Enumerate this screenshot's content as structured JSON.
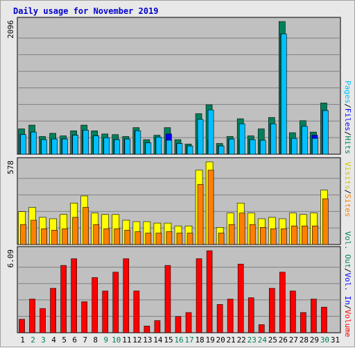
{
  "title": "Daily usage for November 2019",
  "colors": {
    "background": "#e8e8e8",
    "plot_bg": "#c0c0c0",
    "hits": "#00805c",
    "files": "#0000ff",
    "pages": "#00c0ff",
    "visits": "#ffff00",
    "sites": "#ff8000",
    "kbytes": "#ff0000",
    "weekday_label": "#000000",
    "weekend_label": "#00805c"
  },
  "chart_data": [
    {
      "type": "bar",
      "name": "hits-files-pages",
      "ymax_label": "2096",
      "ylim": [
        0,
        2096
      ],
      "legend": [
        "Hits",
        "Files",
        "Pages"
      ],
      "series": [
        {
          "name": "Hits",
          "values": [
            400,
            460,
            280,
            330,
            290,
            370,
            460,
            370,
            320,
            310,
            280,
            420,
            230,
            300,
            420,
            230,
            160,
            640,
            780,
            170,
            280,
            560,
            290,
            400,
            580,
            2096,
            340,
            530,
            350,
            810
          ]
        },
        {
          "name": "Files",
          "values": [
            310,
            350,
            230,
            240,
            240,
            300,
            380,
            290,
            260,
            230,
            240,
            370,
            180,
            270,
            320,
            170,
            130,
            230,
            230,
            130,
            240,
            230,
            230,
            220,
            480,
            1900,
            250,
            440,
            300,
            690
          ]
        },
        {
          "name": "Pages",
          "values": [
            310,
            350,
            230,
            240,
            240,
            300,
            380,
            290,
            260,
            230,
            240,
            370,
            180,
            270,
            220,
            170,
            130,
            550,
            700,
            130,
            240,
            480,
            230,
            220,
            480,
            1900,
            250,
            440,
            250,
            690
          ]
        }
      ]
    },
    {
      "type": "bar",
      "name": "visits-sites",
      "ymax_label": "578",
      "ylim": [
        0,
        578
      ],
      "legend": [
        "Visits",
        "Sites"
      ],
      "series": [
        {
          "name": "Visits",
          "values": [
            230,
            260,
            190,
            180,
            210,
            290,
            340,
            220,
            210,
            210,
            170,
            160,
            160,
            150,
            150,
            130,
            130,
            520,
            578,
            120,
            220,
            290,
            220,
            180,
            190,
            180,
            220,
            210,
            220,
            380
          ]
        },
        {
          "name": "Sites",
          "values": [
            140,
            170,
            110,
            100,
            110,
            190,
            260,
            140,
            110,
            110,
            100,
            90,
            80,
            80,
            90,
            80,
            80,
            420,
            520,
            80,
            140,
            220,
            140,
            120,
            110,
            110,
            130,
            130,
            130,
            320
          ]
        }
      ]
    },
    {
      "type": "bar",
      "name": "volume",
      "ymax_label": "6.09",
      "ylim": [
        0,
        6.09
      ],
      "legend": [
        "Volume",
        "Vol. In",
        "Vol. Out"
      ],
      "series": [
        {
          "name": "Volume",
          "values": [
            1.0,
            2.5,
            1.8,
            3.3,
            5.0,
            5.5,
            2.3,
            4.1,
            3.1,
            4.5,
            5.5,
            3.1,
            0.5,
            0.9,
            5.0,
            1.2,
            1.5,
            5.5,
            6.09,
            2.1,
            2.5,
            5.1,
            2.6,
            0.6,
            3.3,
            4.5,
            3.1,
            1.5,
            2.5,
            1.9
          ]
        }
      ]
    }
  ],
  "x_labels": [
    "1",
    "2",
    "3",
    "4",
    "5",
    "6",
    "7",
    "8",
    "9",
    "10",
    "11",
    "12",
    "13",
    "14",
    "15",
    "16",
    "17",
    "18",
    "19",
    "20",
    "21",
    "22",
    "23",
    "24",
    "25",
    "26",
    "27",
    "28",
    "29",
    "30",
    "31"
  ],
  "weekend_days": [
    2,
    3,
    9,
    10,
    16,
    17,
    23,
    24,
    30
  ],
  "legend_labels": {
    "hits": "Hits",
    "files": "Files",
    "pages": "Pages",
    "visits": "Visits",
    "sites": "Sites",
    "vol_out": "Vol. Out",
    "vol_in": "Vol. In",
    "volume": "Volume",
    "slash": "/"
  }
}
